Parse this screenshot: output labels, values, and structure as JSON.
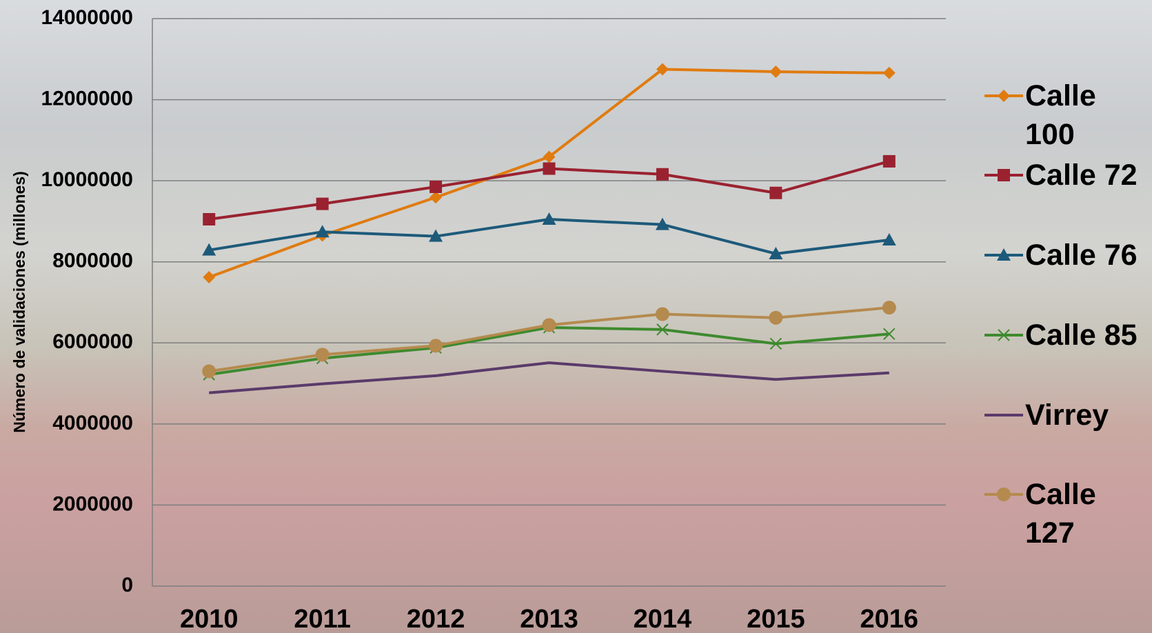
{
  "chart_data": {
    "type": "line",
    "y_label": "Número de validaciones (millones)",
    "categories": [
      "2010",
      "2011",
      "2012",
      "2013",
      "2014",
      "2015",
      "2016"
    ],
    "series": [
      {
        "name": "Calle 100",
        "color": "#e07b10",
        "marker": "diamond",
        "values": [
          7620000,
          8650000,
          9590000,
          10590000,
          12750000,
          12690000,
          12660000
        ]
      },
      {
        "name": "Calle 72",
        "color": "#9a2230",
        "marker": "square",
        "values": [
          9050000,
          9430000,
          9850000,
          10300000,
          10160000,
          9700000,
          10480000
        ]
      },
      {
        "name": "Calle 76",
        "color": "#1d5a7a",
        "marker": "triangle",
        "values": [
          8290000,
          8740000,
          8630000,
          9050000,
          8920000,
          8200000,
          8540000
        ]
      },
      {
        "name": "Calle 85",
        "color": "#3e8a2e",
        "marker": "x",
        "values": [
          5220000,
          5620000,
          5880000,
          6380000,
          6330000,
          5980000,
          6220000
        ]
      },
      {
        "name": "Virrey",
        "color": "#5a3a6a",
        "marker": "none",
        "values": [
          4770000,
          4990000,
          5190000,
          5510000,
          5300000,
          5100000,
          5260000
        ]
      },
      {
        "name": "Calle 127",
        "color": "#b58a4e",
        "marker": "circle",
        "values": [
          5300000,
          5710000,
          5930000,
          6440000,
          6710000,
          6620000,
          6870000
        ]
      }
    ],
    "ylim": [
      0,
      14000000
    ],
    "yticks": [
      0,
      2000000,
      4000000,
      6000000,
      8000000,
      10000000,
      12000000,
      14000000
    ],
    "grid": true,
    "legend": "right"
  }
}
